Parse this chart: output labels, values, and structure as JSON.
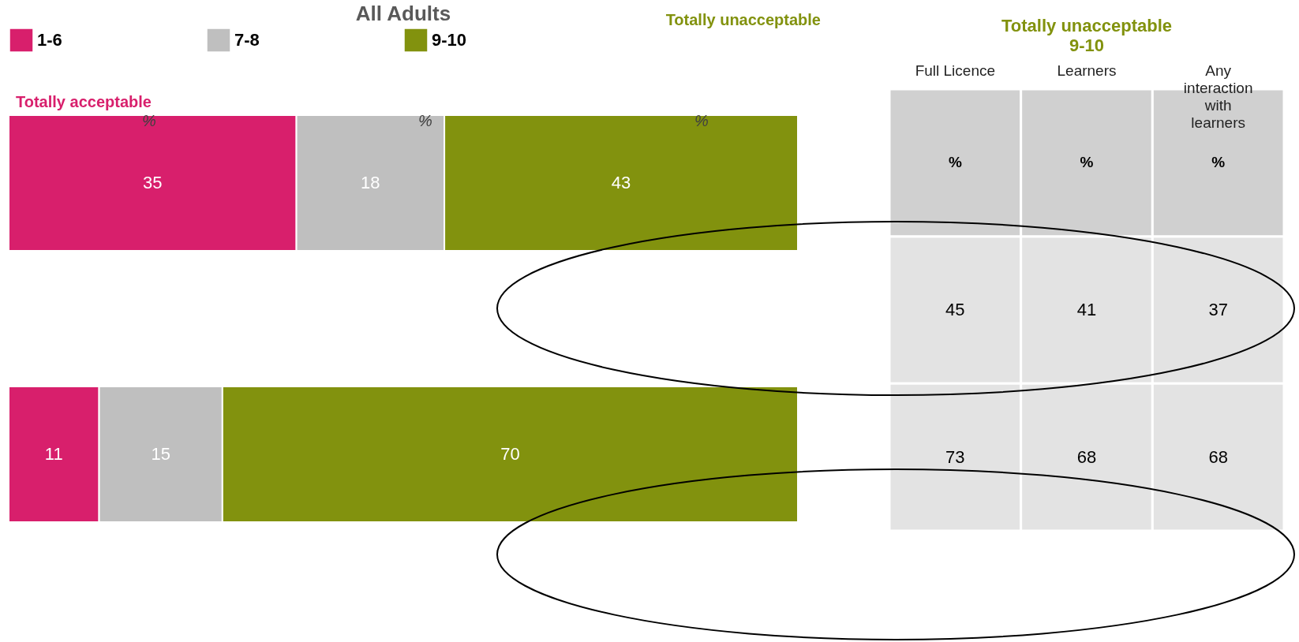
{
  "chart_data": [
    {
      "type": "bar",
      "orientation": "horizontal",
      "stacked": true,
      "title": "All Adults",
      "categories": [
        null,
        null
      ],
      "series": [
        {
          "name": "1-6",
          "color": "#d81f6c",
          "values": [
            35,
            11
          ]
        },
        {
          "name": "7-8",
          "color": "#bfbfbf",
          "values": [
            18,
            15
          ]
        },
        {
          "name": "9-10",
          "color": "#82920e",
          "values": [
            43,
            70
          ]
        }
      ],
      "data_labels": true,
      "legend": "top",
      "annotations": [
        "Totally acceptable",
        "Totally unacceptable",
        "%",
        "%",
        "%"
      ]
    },
    {
      "type": "heatmap",
      "title": "Totally unacceptable",
      "subtitle": "9-10",
      "categories": [
        "Full Licence",
        "Learners",
        "Any interaction with learners"
      ],
      "y_categories": [
        null,
        null
      ],
      "cells": [
        [
          45,
          41,
          37
        ],
        [
          73,
          68,
          68
        ]
      ],
      "data_labels": true,
      "annotations": [
        "%",
        "%",
        "%"
      ]
    }
  ]
}
